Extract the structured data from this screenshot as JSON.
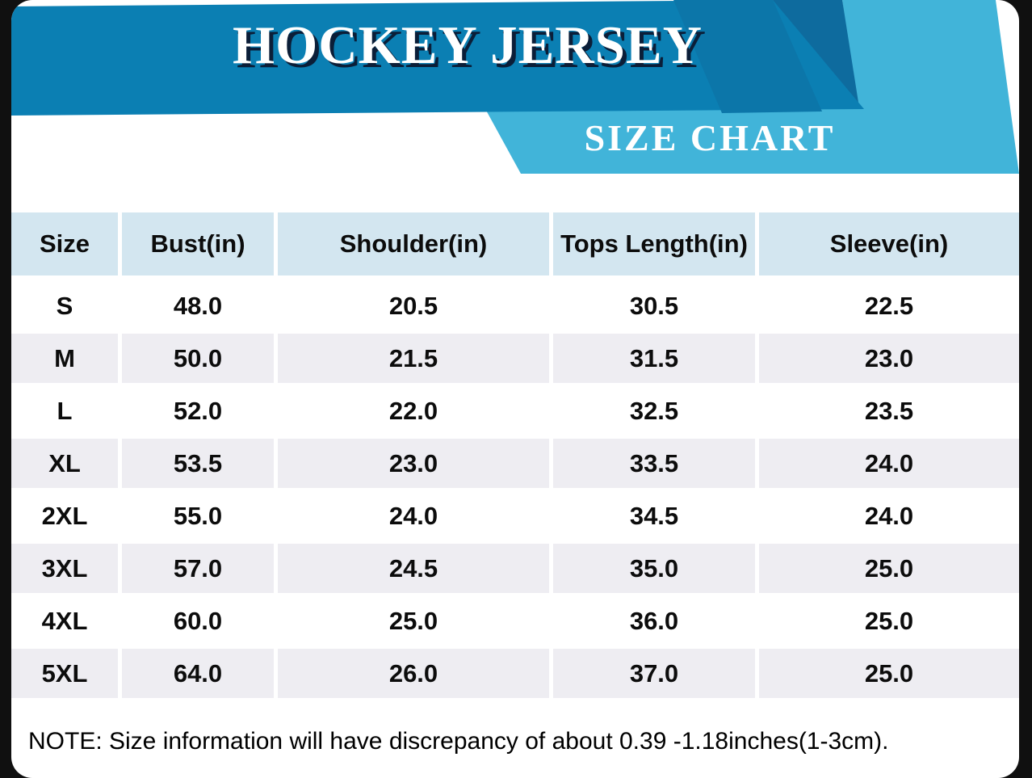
{
  "banner": {
    "title": "HOCKEY JERSEY",
    "subtitle": "SIZE CHART"
  },
  "table": {
    "columns": [
      "Size",
      "Bust(in)",
      "Shoulder(in)",
      "Tops Length(in)",
      "Sleeve(in)"
    ],
    "rows": [
      [
        "S",
        "48.0",
        "20.5",
        "30.5",
        "22.5"
      ],
      [
        "M",
        "50.0",
        "21.5",
        "31.5",
        "23.0"
      ],
      [
        "L",
        "52.0",
        "22.0",
        "32.5",
        "23.5"
      ],
      [
        "XL",
        "53.5",
        "23.0",
        "33.5",
        "24.0"
      ],
      [
        "2XL",
        "55.0",
        "24.0",
        "34.5",
        "24.0"
      ],
      [
        "3XL",
        "57.0",
        "24.5",
        "35.0",
        "25.0"
      ],
      [
        "4XL",
        "60.0",
        "25.0",
        "36.0",
        "25.0"
      ],
      [
        "5XL",
        "64.0",
        "26.0",
        "37.0",
        "25.0"
      ]
    ]
  },
  "note": "NOTE: Size information will have discrepancy of about 0.39 -1.18inches(1-3cm).",
  "colors": {
    "banner_blue": "#0b7fb3",
    "banner_dark_ribbon": "#0e6b9e",
    "light_ribbon_blue": "#41b4d9",
    "header_cell_blue": "#d3e6f0",
    "alt_row_gray": "#eeedf2",
    "frame_black": "#101010",
    "text_black": "#0c0c0c",
    "title_white": "#ffffff"
  }
}
